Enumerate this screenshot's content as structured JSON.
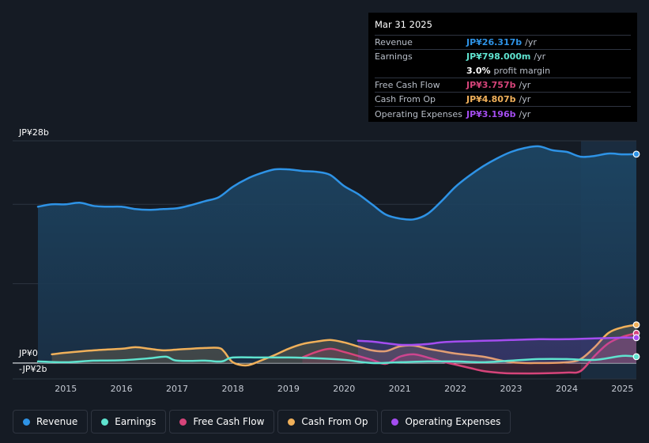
{
  "tooltip": {
    "date": "Mar 31 2025",
    "rows": [
      {
        "label": "Revenue",
        "value": "JP¥26.317b",
        "unit": "/yr",
        "color": "#2e93e6"
      },
      {
        "label": "Earnings",
        "value": "JP¥798.000m",
        "unit": "/yr",
        "color": "#5fe3cf"
      },
      {
        "label": "",
        "value": "3.0%",
        "unit": "profit margin",
        "color": "#ffffff"
      },
      {
        "label": "Free Cash Flow",
        "value": "JP¥3.757b",
        "unit": "/yr",
        "color": "#d6447a"
      },
      {
        "label": "Cash From Op",
        "value": "JP¥4.807b",
        "unit": "/yr",
        "color": "#f0b05a"
      },
      {
        "label": "Operating Expenses",
        "value": "JP¥3.196b",
        "unit": "/yr",
        "color": "#a44df0"
      }
    ]
  },
  "legend": [
    {
      "label": "Revenue",
      "color": "#2e93e6"
    },
    {
      "label": "Earnings",
      "color": "#5fe3cf"
    },
    {
      "label": "Free Cash Flow",
      "color": "#d6447a"
    },
    {
      "label": "Cash From Op",
      "color": "#f0b05a"
    },
    {
      "label": "Operating Expenses",
      "color": "#a44df0"
    }
  ],
  "chart_data": {
    "type": "area",
    "title": "",
    "ylabel": "",
    "y_top_label": "JP¥28b",
    "y_zero_label": "JP¥0",
    "y_bottom_label": "-JP¥2b",
    "ylim": [
      -2,
      28
    ],
    "x_range": [
      2014.5,
      2025.25
    ],
    "xticks": [
      2015,
      2016,
      2017,
      2018,
      2019,
      2020,
      2021,
      2022,
      2023,
      2024,
      2025
    ],
    "forecast_start": 2024.25,
    "series": [
      {
        "name": "Revenue",
        "color": "#2e93e6",
        "fill": true,
        "x": [
          2014.5,
          2014.75,
          2015.0,
          2015.25,
          2015.5,
          2015.75,
          2016.0,
          2016.25,
          2016.5,
          2016.75,
          2017.0,
          2017.25,
          2017.5,
          2017.75,
          2018.0,
          2018.25,
          2018.5,
          2018.75,
          2019.0,
          2019.25,
          2019.5,
          2019.75,
          2020.0,
          2020.25,
          2020.5,
          2020.75,
          2021.0,
          2021.25,
          2021.5,
          2021.75,
          2022.0,
          2022.25,
          2022.5,
          2022.75,
          2023.0,
          2023.25,
          2023.5,
          2023.75,
          2024.0,
          2024.25,
          2024.5,
          2024.75,
          2025.0,
          2025.25
        ],
        "values": [
          19.7,
          20.0,
          20.0,
          20.2,
          19.8,
          19.7,
          19.7,
          19.4,
          19.3,
          19.4,
          19.5,
          19.9,
          20.4,
          20.9,
          22.2,
          23.2,
          23.9,
          24.4,
          24.4,
          24.2,
          24.1,
          23.7,
          22.3,
          21.3,
          20.0,
          18.7,
          18.2,
          18.1,
          18.8,
          20.4,
          22.2,
          23.6,
          24.8,
          25.8,
          26.6,
          27.1,
          27.3,
          26.8,
          26.6,
          26.0,
          26.1,
          26.4,
          26.3,
          26.32
        ]
      },
      {
        "name": "Earnings",
        "color": "#5fe3cf",
        "fill": false,
        "x": [
          2014.5,
          2015.0,
          2015.5,
          2016.0,
          2016.5,
          2016.8,
          2017.0,
          2017.5,
          2017.8,
          2018.0,
          2018.5,
          2019.0,
          2019.5,
          2020.0,
          2020.5,
          2021.0,
          2021.5,
          2022.0,
          2022.5,
          2023.0,
          2023.5,
          2024.0,
          2024.5,
          2025.0,
          2025.25
        ],
        "values": [
          0.2,
          0.1,
          0.3,
          0.35,
          0.6,
          0.8,
          0.3,
          0.3,
          0.2,
          0.7,
          0.7,
          0.7,
          0.6,
          0.4,
          0.0,
          0.1,
          0.2,
          0.2,
          0.1,
          0.3,
          0.5,
          0.5,
          0.4,
          0.9,
          0.8
        ]
      },
      {
        "name": "Free Cash Flow",
        "color": "#d6447a",
        "fill": true,
        "x": [
          2019.25,
          2019.5,
          2019.75,
          2020.0,
          2020.25,
          2020.5,
          2020.75,
          2021.0,
          2021.25,
          2021.5,
          2021.75,
          2022.0,
          2022.25,
          2022.5,
          2022.75,
          2023.0,
          2023.5,
          2024.0,
          2024.25,
          2024.5,
          2024.75,
          2025.0,
          2025.25
        ],
        "values": [
          0.7,
          1.4,
          1.8,
          1.4,
          0.9,
          0.4,
          -0.1,
          0.8,
          1.1,
          0.7,
          0.2,
          -0.2,
          -0.6,
          -1.0,
          -1.2,
          -1.3,
          -1.3,
          -1.2,
          -1.0,
          0.9,
          2.5,
          3.3,
          3.76
        ]
      },
      {
        "name": "Cash From Op",
        "color": "#f0b05a",
        "fill": true,
        "x": [
          2014.75,
          2015.0,
          2015.5,
          2016.0,
          2016.25,
          2016.5,
          2016.75,
          2017.0,
          2017.25,
          2017.5,
          2017.75,
          2017.85,
          2018.0,
          2018.25,
          2018.5,
          2018.75,
          2019.0,
          2019.25,
          2019.5,
          2019.75,
          2020.0,
          2020.25,
          2020.5,
          2020.75,
          2021.0,
          2021.25,
          2021.5,
          2021.75,
          2022.0,
          2022.5,
          2023.0,
          2023.5,
          2024.0,
          2024.25,
          2024.5,
          2024.75,
          2025.0,
          2025.25
        ],
        "values": [
          1.1,
          1.3,
          1.6,
          1.8,
          2.0,
          1.8,
          1.6,
          1.7,
          1.8,
          1.9,
          1.9,
          1.4,
          0.1,
          -0.3,
          0.3,
          1.0,
          1.8,
          2.4,
          2.7,
          2.9,
          2.6,
          2.1,
          1.6,
          1.5,
          2.1,
          2.2,
          1.8,
          1.5,
          1.2,
          0.8,
          0.1,
          0.0,
          0.1,
          0.5,
          2.0,
          3.8,
          4.5,
          4.81
        ]
      },
      {
        "name": "Operating Expenses",
        "color": "#a44df0",
        "fill": true,
        "x": [
          2020.25,
          2020.5,
          2020.75,
          2021.0,
          2021.25,
          2021.5,
          2021.75,
          2022.0,
          2022.5,
          2023.0,
          2023.5,
          2024.0,
          2024.5,
          2025.0,
          2025.25
        ],
        "values": [
          2.8,
          2.7,
          2.5,
          2.3,
          2.3,
          2.4,
          2.6,
          2.7,
          2.8,
          2.9,
          3.0,
          3.0,
          3.1,
          3.2,
          3.2
        ]
      }
    ]
  }
}
